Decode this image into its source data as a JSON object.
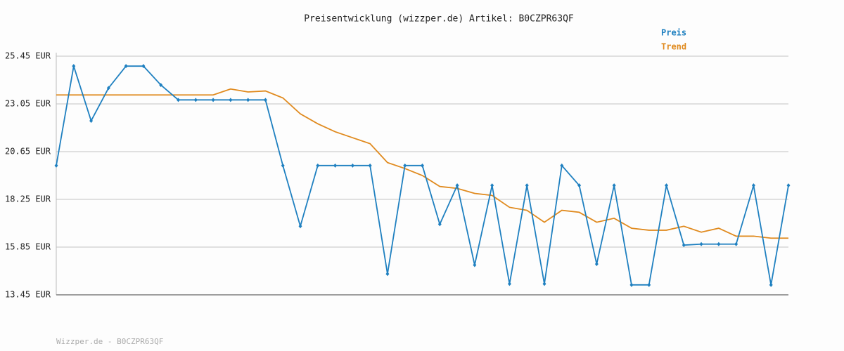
{
  "chart_data": {
    "type": "line",
    "title": "Preisentwicklung (wizzper.de) Artikel: B0CZPR63QF",
    "footer": "Wizzper.de - B0CZPR63QF",
    "legend": "top-right",
    "grid": true,
    "categories": [
      null,
      null,
      null,
      null,
      null,
      null,
      null,
      null,
      null,
      null,
      null,
      null,
      null,
      null,
      null,
      null,
      null,
      null,
      null,
      null,
      null,
      null,
      null,
      null,
      null,
      null,
      null,
      null,
      null,
      null,
      null,
      null,
      null,
      null,
      null,
      null,
      null,
      null,
      null,
      null,
      null,
      null,
      null
    ],
    "ylim": [
      13.45,
      25.45
    ],
    "yticks": [
      {
        "value": 13.45,
        "label": "13.45 EUR"
      },
      {
        "value": 15.85,
        "label": "15.85 EUR"
      },
      {
        "value": 18.25,
        "label": "18.25 EUR"
      },
      {
        "value": 20.65,
        "label": "20.65 EUR"
      },
      {
        "value": 23.05,
        "label": "23.05 EUR"
      },
      {
        "value": 25.45,
        "label": "25.45 EUR"
      }
    ],
    "series": [
      {
        "name": "Preis",
        "color": "#1f80c0",
        "markers": true,
        "values": [
          19.95,
          24.95,
          22.2,
          23.85,
          24.95,
          24.95,
          24.0,
          23.25,
          23.25,
          23.25,
          23.25,
          23.25,
          23.25,
          19.95,
          16.9,
          19.95,
          19.95,
          19.95,
          19.95,
          14.5,
          19.95,
          19.95,
          17.0,
          18.95,
          14.95,
          18.95,
          14.0,
          18.95,
          14.0,
          19.95,
          18.95,
          15.0,
          18.95,
          13.95,
          13.95,
          18.95,
          15.95,
          16.0,
          16.0,
          16.0,
          18.95,
          13.95,
          18.95
        ]
      },
      {
        "name": "Trend",
        "color": "#e08a1e",
        "markers": false,
        "values": [
          23.5,
          23.5,
          23.5,
          23.5,
          23.5,
          23.5,
          23.5,
          23.5,
          23.5,
          23.5,
          23.8,
          23.65,
          23.7,
          23.35,
          22.55,
          22.05,
          21.65,
          21.35,
          21.05,
          20.1,
          19.8,
          19.45,
          18.9,
          18.8,
          18.55,
          18.45,
          17.85,
          17.7,
          17.1,
          17.7,
          17.6,
          17.1,
          17.3,
          16.8,
          16.7,
          16.7,
          16.9,
          16.6,
          16.8,
          16.4,
          16.4,
          16.3,
          16.3
        ]
      }
    ]
  }
}
